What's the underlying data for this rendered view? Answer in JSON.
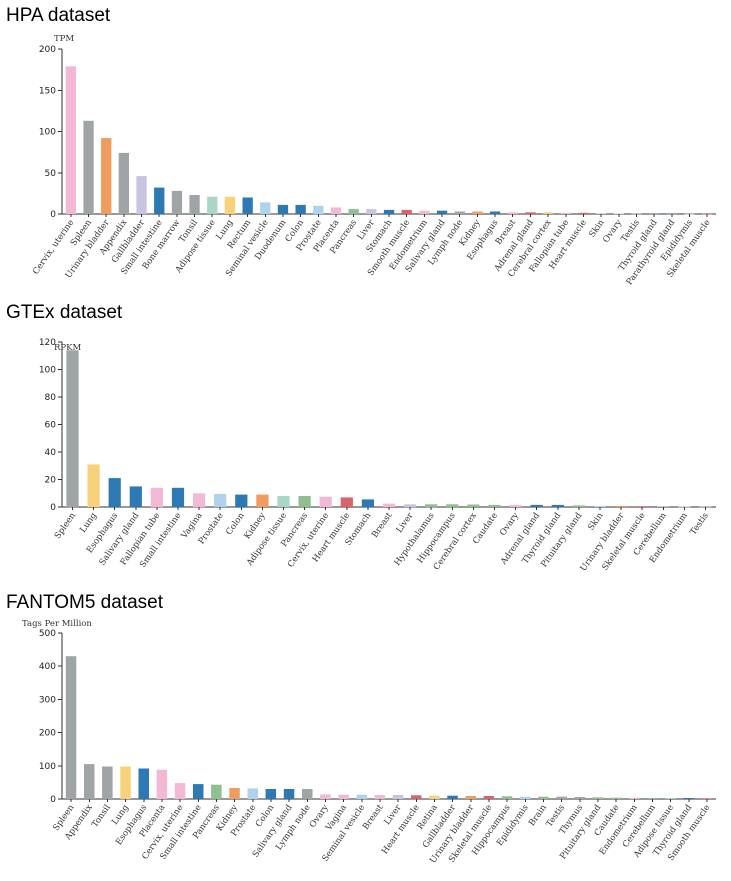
{
  "chart_data": [
    {
      "type": "bar",
      "title": "HPA dataset",
      "ylabel": "TPM",
      "ylim": [
        0,
        200
      ],
      "yticks": [
        0,
        50,
        100,
        150,
        200
      ],
      "highlight": "Colon",
      "categories": [
        "Cervix, uterine",
        "Spleen",
        "Urinary bladder",
        "Appendix",
        "Gallbladder",
        "Small intestine",
        "Bone marrow",
        "Tonsil",
        "Adipose tissue",
        "Lung",
        "Rectum",
        "Seminal vesicle",
        "Duodenum",
        "Colon",
        "Prostate",
        "Placenta",
        "Pancreas",
        "Liver",
        "Stomach",
        "Smooth muscle",
        "Endometrium",
        "Salivary gland",
        "Lymph node",
        "Kidney",
        "Esophagus",
        "Breast",
        "Adrenal gland",
        "Cerebral cortex",
        "Fallopian tube",
        "Heart muscle",
        "Skin",
        "Ovary",
        "Testis",
        "Thyroid gland",
        "Parathyroid gland",
        "Epididymis",
        "Skeletal muscle"
      ],
      "values": [
        179,
        113,
        92,
        74,
        46,
        32,
        28,
        23,
        21,
        21,
        20,
        14,
        11,
        11,
        10,
        8,
        6,
        6,
        5,
        5,
        4,
        4,
        3,
        3,
        3,
        2,
        2,
        2,
        1.5,
        1.5,
        0.8,
        0.6,
        0.5,
        0.4,
        0.3,
        0.3,
        0.2
      ],
      "colors": [
        "#f2b8d6",
        "#9fa5a7",
        "#ef9c5e",
        "#9fa5a7",
        "#c9c3e2",
        "#2c79b4",
        "#9fa5a7",
        "#9fa5a7",
        "#a9d6c6",
        "#f7d27a",
        "#2c79b4",
        "#aed3ed",
        "#2c79b4",
        "#2c79b4",
        "#aed3ed",
        "#f2b8d6",
        "#8fbf8f",
        "#c9c3e2",
        "#2c79b4",
        "#d9646e",
        "#f2b8d6",
        "#2c79b4",
        "#9fa5a7",
        "#ef9c5e",
        "#2c79b4",
        "#f2b8d6",
        "#d9646e",
        "#f7d27a",
        "#f2b8d6",
        "#d9646e",
        "#aed3ed",
        "#f2b8d6",
        "#9fa5a7",
        "#2c79b4",
        "#2c79b4",
        "#aed3ed",
        "#d9646e"
      ]
    },
    {
      "type": "bar",
      "title": "GTEx dataset",
      "ylabel": "RPKM",
      "ylim": [
        0,
        120
      ],
      "yticks": [
        0,
        20,
        40,
        60,
        80,
        100,
        120
      ],
      "highlight": "Colon",
      "categories": [
        "Spleen",
        "Lung",
        "Esophagus",
        "Salivary gland",
        "Fallopian tube",
        "Small intestine",
        "Vagina",
        "Prostate",
        "Colon",
        "Kidney",
        "Adipose tissue",
        "Pancreas",
        "Cervix, uterine",
        "Heart muscle",
        "Stomach",
        "Breast",
        "Liver",
        "Hypothalamus",
        "Hippocampus",
        "Cerebral cortex",
        "Caudate",
        "Ovary",
        "Adrenal gland",
        "Thyroid gland",
        "Pituitary gland",
        "Skin",
        "Urinary bladder",
        "Skeletal muscle",
        "Cerebellum",
        "Endometrium",
        "Testis"
      ],
      "values": [
        114,
        31,
        21,
        15,
        14,
        14,
        10,
        9.5,
        9,
        9,
        8,
        8,
        7.5,
        7,
        5.5,
        2.5,
        2,
        2,
        2,
        1.8,
        1.5,
        1.5,
        1.5,
        1.5,
        1.2,
        0.8,
        0.8,
        0.6,
        0.5,
        0.3,
        0.3
      ],
      "colors": [
        "#9fa5a7",
        "#f7d27a",
        "#2c79b4",
        "#2c79b4",
        "#f2b8d6",
        "#2c79b4",
        "#f2b8d6",
        "#aed3ed",
        "#2c79b4",
        "#ef9c5e",
        "#a9d6c6",
        "#8fbf8f",
        "#f2b8d6",
        "#d9646e",
        "#2c79b4",
        "#f2b8d6",
        "#c9c3e2",
        "#8fbf8f",
        "#8fbf8f",
        "#8fbf8f",
        "#8fbf8f",
        "#f2b8d6",
        "#2c79b4",
        "#2c79b4",
        "#8fbf8f",
        "#aed3ed",
        "#ef9c5e",
        "#d9646e",
        "#8fbf8f",
        "#f2b8d6",
        "#9fa5a7"
      ]
    },
    {
      "type": "bar",
      "title": "FANTOM5 dataset",
      "ylabel": "Tags Per Million",
      "ylim": [
        0,
        500
      ],
      "yticks": [
        0,
        100,
        200,
        300,
        400,
        500
      ],
      "highlight": "Colon",
      "categories": [
        "Spleen",
        "Appendix",
        "Tonsil",
        "Lung",
        "Esophagus",
        "Placenta",
        "Cervix, uterine",
        "Small intestine",
        "Pancreas",
        "Kidney",
        "Prostate",
        "Colon",
        "Salivary gland",
        "Lymph node",
        "Ovary",
        "Vagina",
        "Seminal vesicle",
        "Breast",
        "Liver",
        "Heart muscle",
        "Retina",
        "Gallbladder",
        "Urinary bladder",
        "Skeletal muscle",
        "Hippocampus",
        "Epididymis",
        "Brain",
        "Testis",
        "Thymus",
        "Pituitary gland",
        "Caudate",
        "Endometrium",
        "Cerebellum",
        "Adipose tissue",
        "Thyroid gland",
        "Smooth muscle"
      ],
      "values": [
        430,
        105,
        98,
        98,
        92,
        88,
        48,
        45,
        43,
        33,
        32,
        30,
        30,
        30,
        14,
        13,
        13,
        12,
        12,
        11,
        10,
        10,
        9,
        9,
        8,
        7,
        7,
        7,
        6,
        5,
        4,
        4,
        3,
        3,
        3,
        2
      ],
      "colors": [
        "#9fa5a7",
        "#9fa5a7",
        "#9fa5a7",
        "#f7d27a",
        "#2c79b4",
        "#f2b8d6",
        "#f2b8d6",
        "#2c79b4",
        "#8fbf8f",
        "#ef9c5e",
        "#aed3ed",
        "#2c79b4",
        "#2c79b4",
        "#9fa5a7",
        "#f2b8d6",
        "#f2b8d6",
        "#aed3ed",
        "#f2b8d6",
        "#c9c3e2",
        "#d9646e",
        "#f7d27a",
        "#2c79b4",
        "#ef9c5e",
        "#d9646e",
        "#8fbf8f",
        "#aed3ed",
        "#8fbf8f",
        "#9fa5a7",
        "#9fa5a7",
        "#8fbf8f",
        "#8fbf8f",
        "#f2b8d6",
        "#8fbf8f",
        "#a9d6c6",
        "#2c79b4",
        "#d9646e"
      ]
    }
  ]
}
